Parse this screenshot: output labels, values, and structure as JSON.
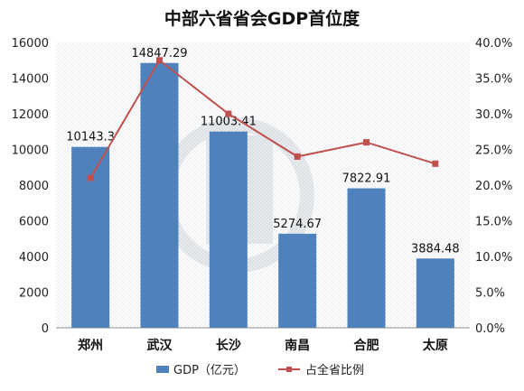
{
  "chart_data": {
    "type": "bar",
    "title": "中部六省省会GDP首位度",
    "categories": [
      "郑州",
      "武汉",
      "长沙",
      "南昌",
      "合肥",
      "太原"
    ],
    "series": [
      {
        "name": "GDP（亿元）",
        "type": "bar",
        "axis": "left",
        "color": "#4F81BD",
        "values": [
          10143.3,
          14847.29,
          11003.41,
          5274.67,
          7822.91,
          3884.48
        ],
        "labels": [
          "10143.3",
          "14847.29",
          "11003.41",
          "5274.67",
          "7822.91",
          "3884.48"
        ]
      },
      {
        "name": "占全省比例",
        "type": "line",
        "axis": "right",
        "color": "#C0504D",
        "values": [
          0.21,
          0.375,
          0.3,
          0.24,
          0.26,
          0.23
        ]
      }
    ],
    "ylim": [
      0,
      16000
    ],
    "y_ticks": [
      "0",
      "2000",
      "4000",
      "6000",
      "8000",
      "10000",
      "12000",
      "14000",
      "16000"
    ],
    "y2lim": [
      0,
      0.4
    ],
    "y2_ticks": [
      "0.0%",
      "5.0%",
      "10.0%",
      "15.0%",
      "20.0%",
      "25.0%",
      "30.0%",
      "35.0%",
      "40.0%"
    ],
    "grid": false,
    "legend_position": "bottom"
  }
}
